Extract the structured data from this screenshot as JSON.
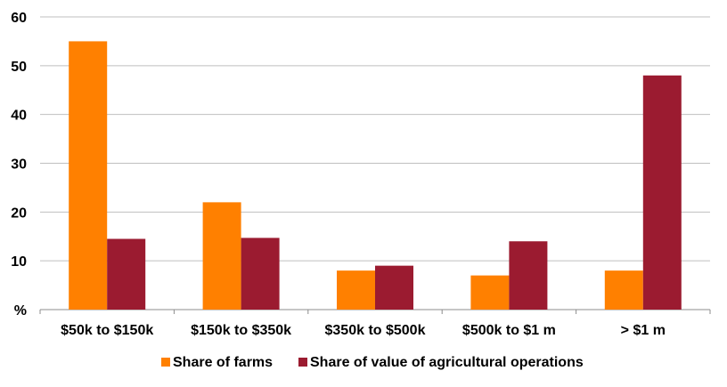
{
  "chart_data": {
    "type": "bar",
    "categories": [
      "$50k to $150k",
      "$150k to $350k",
      "$350k to $500k",
      "$500k to $1 m",
      "> $1 m"
    ],
    "series": [
      {
        "name": "Share of farms",
        "values": [
          55,
          22,
          8,
          7,
          8
        ],
        "color": "#FF8000"
      },
      {
        "name": "Share of value of agricultural operations",
        "values": [
          14.5,
          14.7,
          9,
          14,
          48
        ],
        "color": "#9B1B30"
      }
    ],
    "y_ticks": [
      "%",
      "10",
      "20",
      "30",
      "40",
      "50",
      "60"
    ],
    "ylim": [
      0,
      60
    ],
    "grid": true,
    "legend_position": "bottom"
  }
}
